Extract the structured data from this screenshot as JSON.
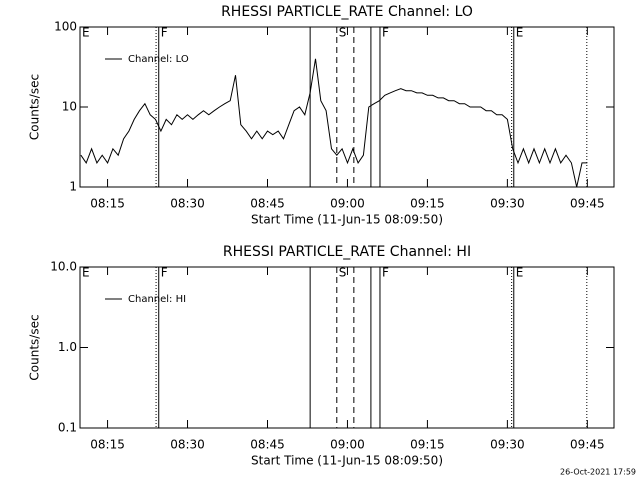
{
  "chart_data": [
    {
      "type": "line",
      "title": "RHESSI PARTICLE_RATE Channel: LO",
      "xlabel": "Start Time (11-Jun-15 08:09:50)",
      "ylabel": "Counts/sec",
      "log_y": true,
      "legend": "upper left",
      "xlim": [
        489.83,
        590
      ],
      "ylim": [
        1,
        100
      ],
      "yticks": [
        1,
        10,
        100
      ],
      "xticks": [
        {
          "value": 495,
          "label": "08:15"
        },
        {
          "value": 510,
          "label": "08:30"
        },
        {
          "value": 525,
          "label": "08:45"
        },
        {
          "value": 540,
          "label": "09:00"
        },
        {
          "value": 555,
          "label": "09:15"
        },
        {
          "value": 570,
          "label": "09:30"
        },
        {
          "value": 585,
          "label": "09:45"
        }
      ],
      "markers": [
        {
          "x": 489.83,
          "style": "none",
          "label": "E"
        },
        {
          "x": 504.1,
          "style": "dotted"
        },
        {
          "x": 504.6,
          "style": "solid",
          "label": "F"
        },
        {
          "x": 533.0,
          "style": "solid"
        },
        {
          "x": 538.0,
          "style": "dashed",
          "label": "S"
        },
        {
          "x": 541.2,
          "style": "dashed"
        },
        {
          "x": 544.4,
          "style": "solid"
        },
        {
          "x": 546.1,
          "style": "solid",
          "label": "F"
        },
        {
          "x": 570.8,
          "style": "dotted"
        },
        {
          "x": 571.2,
          "style": "solid",
          "label": "E"
        },
        {
          "x": 584.9,
          "style": "dotted"
        }
      ],
      "x": [
        490,
        491,
        492,
        493,
        494,
        495,
        496,
        497,
        498,
        499,
        500,
        501,
        502,
        503,
        504,
        505,
        506,
        507,
        508,
        509,
        510,
        511,
        512,
        513,
        514,
        515,
        516,
        517,
        518,
        519,
        520,
        521,
        522,
        523,
        524,
        525,
        526,
        527,
        528,
        529,
        530,
        531,
        532,
        533,
        534,
        535,
        536,
        537,
        538,
        539,
        540,
        541,
        542,
        543,
        544,
        545,
        546,
        547,
        548,
        549,
        550,
        551,
        552,
        553,
        554,
        555,
        556,
        557,
        558,
        559,
        560,
        561,
        562,
        563,
        564,
        565,
        566,
        567,
        568,
        569,
        570,
        571,
        572,
        573,
        574,
        575,
        576,
        577,
        578,
        579,
        580,
        581,
        582,
        583,
        584,
        585
      ],
      "series": [
        {
          "name": "Channel: LO",
          "color": "#000000",
          "values": [
            2.5,
            2,
            3,
            2,
            2.5,
            2,
            3,
            2.5,
            4,
            5,
            7,
            9,
            11,
            8,
            7,
            5,
            7,
            6,
            8,
            7,
            8,
            7,
            8,
            9,
            8,
            9,
            10,
            11,
            12,
            25,
            6,
            5,
            4,
            5,
            4,
            5,
            4.5,
            5,
            4,
            6,
            9,
            10,
            8,
            15,
            40,
            12,
            9,
            3,
            2.5,
            3,
            2,
            3,
            2,
            2.5,
            10,
            11,
            12,
            14,
            15,
            16,
            17,
            16,
            16,
            15,
            15,
            14,
            14,
            13,
            13,
            12,
            12,
            11,
            11,
            10,
            10,
            10,
            9,
            9,
            8,
            8,
            7,
            3,
            2,
            3,
            2,
            3,
            2,
            3,
            2,
            3,
            2,
            2.5,
            2,
            1,
            2,
            2
          ]
        }
      ]
    },
    {
      "type": "line",
      "title": "RHESSI PARTICLE_RATE Channel: HI",
      "xlabel": "Start Time (11-Jun-15 08:09:50)",
      "ylabel": "Counts/sec",
      "log_y": true,
      "legend": "upper left",
      "xlim": [
        489.83,
        590
      ],
      "ylim": [
        0.1,
        10
      ],
      "yticks": [
        {
          "value": 0.1,
          "label": "0.1"
        },
        {
          "value": 1,
          "label": "1.0"
        },
        {
          "value": 10,
          "label": "10.0"
        }
      ],
      "xticks": [
        {
          "value": 495,
          "label": "08:15"
        },
        {
          "value": 510,
          "label": "08:30"
        },
        {
          "value": 525,
          "label": "08:45"
        },
        {
          "value": 540,
          "label": "09:00"
        },
        {
          "value": 555,
          "label": "09:15"
        },
        {
          "value": 570,
          "label": "09:30"
        },
        {
          "value": 585,
          "label": "09:45"
        }
      ],
      "markers": [
        {
          "x": 489.83,
          "style": "none",
          "label": "E"
        },
        {
          "x": 504.1,
          "style": "dotted"
        },
        {
          "x": 504.6,
          "style": "solid",
          "label": "F"
        },
        {
          "x": 533.0,
          "style": "solid"
        },
        {
          "x": 538.0,
          "style": "dashed",
          "label": "S"
        },
        {
          "x": 541.2,
          "style": "dashed"
        },
        {
          "x": 544.4,
          "style": "solid"
        },
        {
          "x": 546.1,
          "style": "solid",
          "label": "F"
        },
        {
          "x": 570.8,
          "style": "dotted"
        },
        {
          "x": 571.2,
          "style": "solid",
          "label": "E"
        },
        {
          "x": 584.9,
          "style": "dotted"
        }
      ],
      "x": [],
      "series": [
        {
          "name": "Channel: HI",
          "color": "#000000",
          "values": []
        }
      ]
    }
  ],
  "footer": "26-Oct-2021 17:59"
}
